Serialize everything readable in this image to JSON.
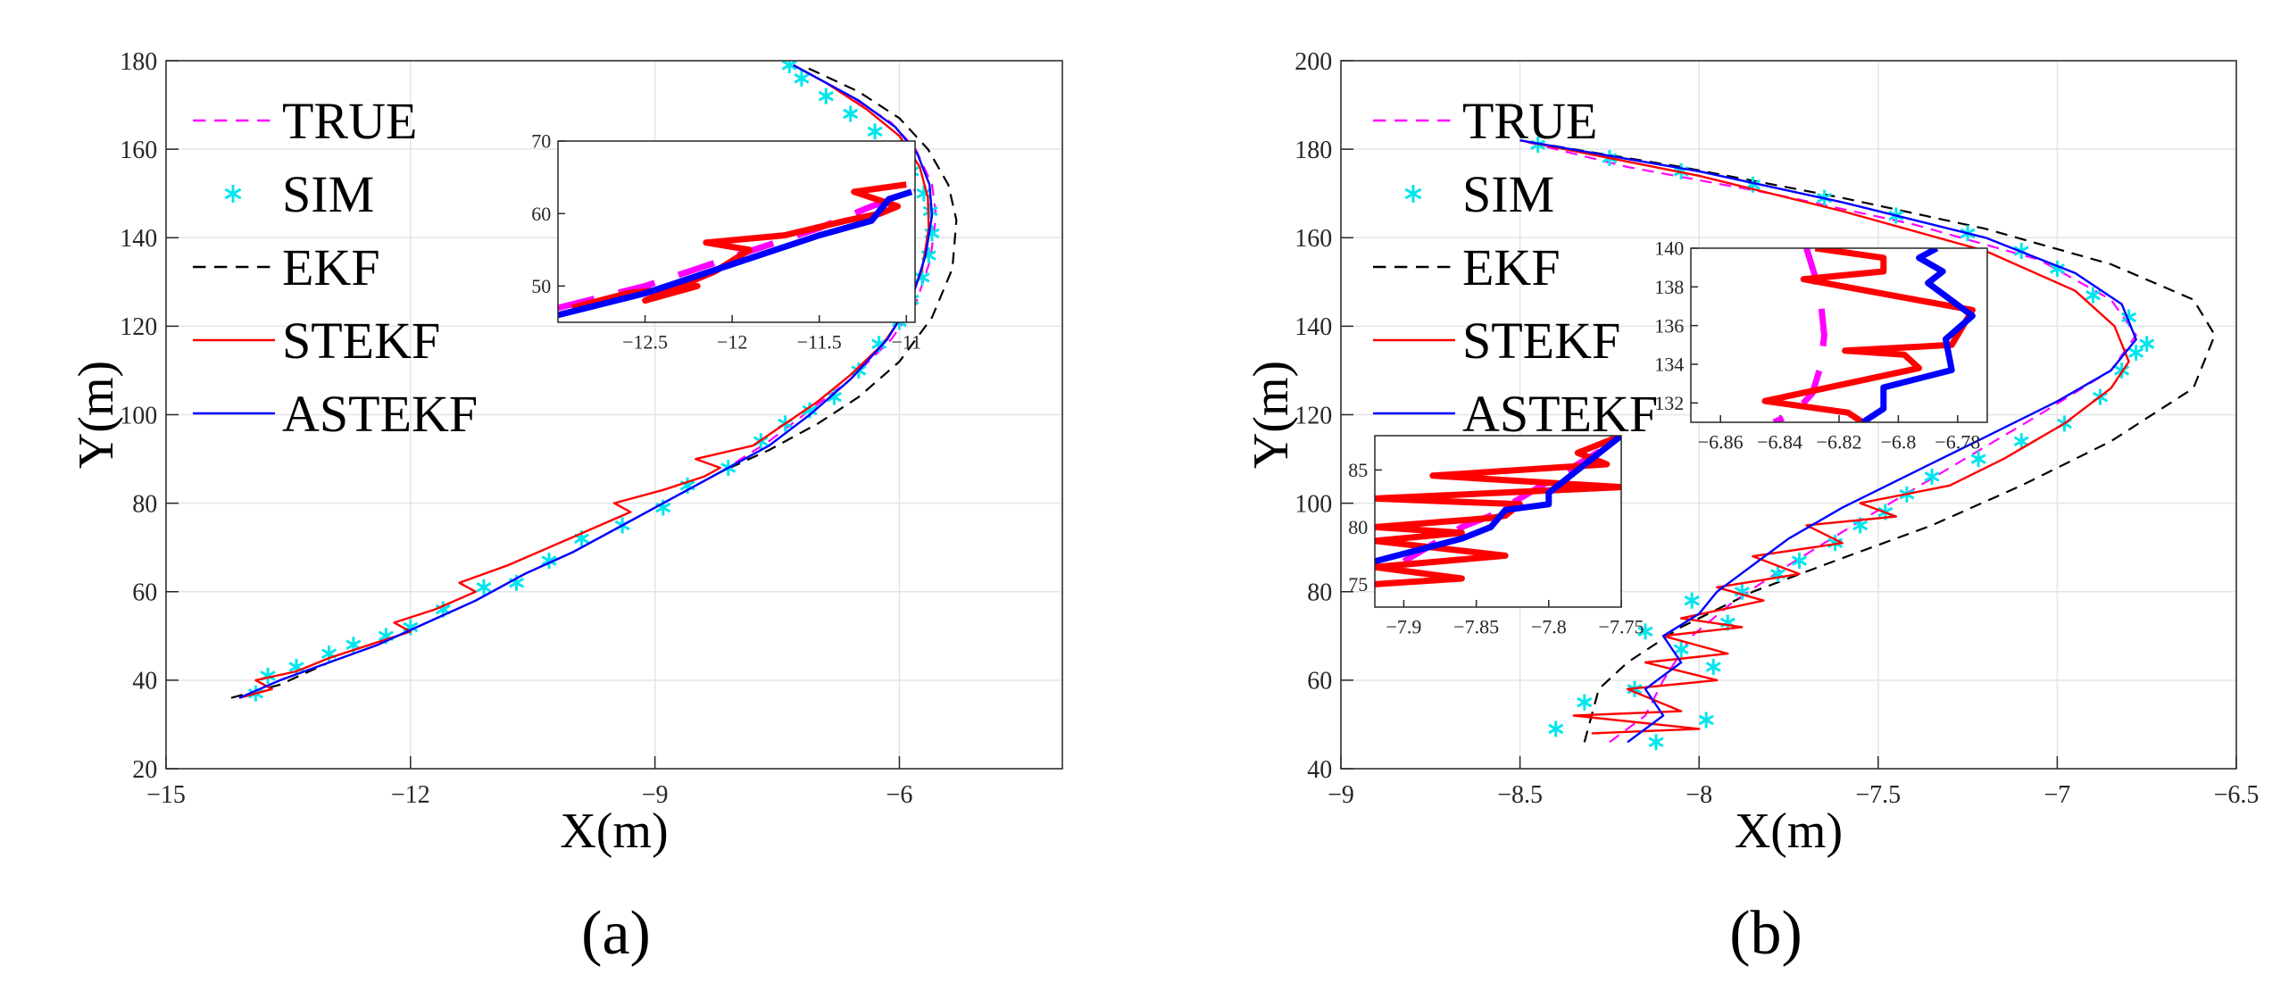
{
  "figure": {
    "panels": [
      {
        "label": "(a)"
      },
      {
        "label": "(b)"
      }
    ]
  },
  "chart_data": [
    {
      "panel": "(a)",
      "type": "line",
      "xlabel": "X(m)",
      "ylabel": "Y(m)",
      "xlim": [
        -15,
        -4
      ],
      "ylim": [
        20,
        180
      ],
      "xticks": [
        -15,
        -12,
        -9,
        -6
      ],
      "yticks": [
        20,
        40,
        60,
        80,
        100,
        120,
        140,
        160,
        180
      ],
      "grid": true,
      "legend": {
        "position": "top-left",
        "entries": [
          "TRUE",
          "SIM",
          "EKF",
          "STEKF",
          "ASTEKF"
        ]
      },
      "series": [
        {
          "name": "TRUE",
          "color": "#ff00ff",
          "style": "dashed",
          "x": [
            -14.1,
            -13.6,
            -13.0,
            -12.4,
            -11.8,
            -11.2,
            -10.6,
            -10.0,
            -9.4,
            -8.8,
            -8.2,
            -7.6,
            -7.1,
            -6.6,
            -6.1,
            -5.8,
            -5.62,
            -5.55,
            -5.6,
            -5.8,
            -6.1,
            -6.6,
            -7.3
          ],
          "y": [
            36,
            40,
            44,
            48,
            53,
            58,
            64,
            69,
            75,
            81,
            87,
            94,
            101,
            108,
            117,
            125,
            135,
            145,
            152,
            160,
            166,
            172,
            179
          ]
        },
        {
          "name": "SIM",
          "color": "#00e5ee",
          "style": "markers",
          "x": [
            -13.9,
            -13.75,
            -13.4,
            -13.0,
            -12.7,
            -12.3,
            -12.0,
            -11.6,
            -11.1,
            -10.7,
            -10.3,
            -9.9,
            -9.4,
            -8.9,
            -8.6,
            -8.1,
            -7.7,
            -7.4,
            -7.1,
            -6.8,
            -6.5,
            -6.25,
            -6.0,
            -5.85,
            -5.72,
            -5.64,
            -5.6,
            -5.62,
            -5.7,
            -5.85,
            -6.05,
            -6.3,
            -6.6,
            -6.9,
            -7.2,
            -7.35
          ],
          "y": [
            37,
            41,
            43,
            46,
            48,
            50,
            52,
            56,
            61,
            62,
            67,
            72,
            75,
            79,
            84,
            88,
            94,
            98,
            101,
            104,
            110,
            116,
            121,
            126,
            131,
            136,
            141,
            146,
            150,
            155,
            160,
            164,
            168,
            172,
            176,
            179
          ]
        },
        {
          "name": "EKF",
          "color": "#000000",
          "style": "dashed",
          "x": [
            -14.2,
            -13.6,
            -13.0,
            -12.4,
            -11.8,
            -11.2,
            -10.6,
            -10.0,
            -9.4,
            -8.8,
            -8.2,
            -7.6,
            -7.0,
            -6.5,
            -6.0,
            -5.6,
            -5.35,
            -5.3,
            -5.4,
            -5.65,
            -6.0,
            -6.5,
            -7.2
          ],
          "y": [
            36,
            39,
            44,
            48,
            53,
            58,
            64,
            69,
            75,
            81,
            87,
            92,
            98,
            104,
            112,
            122,
            133,
            144,
            152,
            160,
            167,
            173,
            179
          ]
        },
        {
          "name": "STEKF",
          "color": "#ff0000",
          "style": "solid",
          "x": [
            -14.1,
            -13.7,
            -13.9,
            -13.4,
            -13.0,
            -12.5,
            -12.0,
            -12.2,
            -11.7,
            -11.2,
            -11.4,
            -10.8,
            -10.3,
            -9.8,
            -9.3,
            -9.5,
            -8.9,
            -8.4,
            -8.2,
            -8.5,
            -7.8,
            -7.4,
            -7.0,
            -6.6,
            -6.2,
            -5.9,
            -5.72,
            -5.64,
            -5.65,
            -5.75,
            -6.0,
            -6.4,
            -6.9,
            -7.3
          ],
          "y": [
            36,
            38,
            40,
            42,
            45,
            48,
            51,
            53,
            56,
            60,
            62,
            66,
            70,
            74,
            78,
            80,
            83,
            86,
            88,
            90,
            93,
            98,
            103,
            109,
            116,
            124,
            133,
            142,
            149,
            156,
            163,
            169,
            175,
            179
          ]
        },
        {
          "name": "ASTEKF",
          "color": "#0000ff",
          "style": "solid",
          "x": [
            -14.1,
            -13.6,
            -13.0,
            -12.4,
            -11.8,
            -11.2,
            -10.6,
            -10.0,
            -9.4,
            -8.8,
            -8.2,
            -7.6,
            -7.1,
            -6.6,
            -6.15,
            -5.85,
            -5.68,
            -5.6,
            -5.63,
            -5.78,
            -6.05,
            -6.5,
            -7.0,
            -7.3
          ],
          "y": [
            36,
            40,
            44,
            48,
            53,
            58,
            64,
            69,
            75,
            81,
            87,
            93,
            100,
            108,
            117,
            126,
            136,
            145,
            152,
            159,
            165,
            171,
            176,
            179
          ]
        }
      ],
      "insets": [
        {
          "position": "top-center",
          "xlim": [
            -13.0,
            -10.95
          ],
          "ylim": [
            45,
            70
          ],
          "xticks": [
            -12.5,
            -12,
            -11.5,
            -11
          ],
          "yticks": [
            50,
            60,
            70
          ],
          "series": [
            {
              "name": "TRUE",
              "x": [
                -13.0,
                -12.5,
                -12.0,
                -11.5,
                -11.2,
                -10.95
              ],
              "y": [
                47,
                50,
                54,
                58,
                61,
                63
              ]
            },
            {
              "name": "STEKF",
              "x": [
                -12.92,
                -12.6,
                -12.2,
                -12.5,
                -12.1,
                -11.9,
                -12.15,
                -11.7,
                -11.35,
                -11.15,
                -11.05,
                -11.3,
                -11.0
              ],
              "y": [
                47,
                49,
                50,
                48,
                52,
                55,
                56,
                57,
                59,
                60,
                61,
                63,
                64
              ]
            },
            {
              "name": "ASTEKF",
              "x": [
                -13.0,
                -12.5,
                -12.0,
                -11.5,
                -11.2,
                -11.1,
                -10.97
              ],
              "y": [
                46,
                49,
                53,
                57,
                59,
                62,
                63
              ]
            }
          ]
        }
      ]
    },
    {
      "panel": "(b)",
      "type": "line",
      "xlabel": "X(m)",
      "ylabel": "Y(m)",
      "xlim": [
        -9,
        -6.5
      ],
      "ylim": [
        40,
        200
      ],
      "xticks": [
        -9,
        -8.5,
        -8,
        -7.5,
        -7,
        -6.5
      ],
      "yticks": [
        40,
        60,
        80,
        100,
        120,
        140,
        160,
        180,
        200
      ],
      "grid": true,
      "legend": {
        "position": "top-left",
        "entries": [
          "TRUE",
          "SIM",
          "EKF",
          "STEKF",
          "ASTEKF"
        ]
      },
      "series": [
        {
          "name": "TRUE",
          "color": "#ff00ff",
          "style": "dashed",
          "x": [
            -8.25,
            -8.15,
            -8.1,
            -8.02,
            -7.9,
            -7.75,
            -7.55,
            -7.3,
            -7.05,
            -6.85,
            -6.78,
            -6.85,
            -7.05,
            -7.4,
            -7.8,
            -8.2,
            -8.5
          ],
          "y": [
            46,
            52,
            60,
            70,
            78,
            86,
            96,
            108,
            120,
            130,
            138,
            146,
            155,
            163,
            170,
            176,
            182
          ]
        },
        {
          "name": "SIM",
          "color": "#00e5ee",
          "style": "markers",
          "x": [
            -8.4,
            -8.12,
            -8.32,
            -7.98,
            -8.18,
            -7.96,
            -8.05,
            -8.15,
            -7.92,
            -8.02,
            -7.88,
            -7.78,
            -7.72,
            -7.62,
            -7.55,
            -7.48,
            -7.42,
            -7.35,
            -7.22,
            -7.1,
            -6.98,
            -6.88,
            -6.82,
            -6.78,
            -6.75,
            -6.8,
            -6.9,
            -7.0,
            -7.1,
            -7.25,
            -7.45,
            -7.65,
            -7.85,
            -8.05,
            -8.25,
            -8.45
          ],
          "y": [
            49,
            46,
            55,
            51,
            58,
            63,
            67,
            71,
            73,
            78,
            80,
            84,
            87,
            91,
            95,
            98,
            102,
            106,
            110,
            114,
            118,
            124,
            130,
            134,
            136,
            142,
            147,
            153,
            157,
            161,
            165,
            169,
            172,
            175,
            178,
            181
          ]
        },
        {
          "name": "EKF",
          "color": "#000000",
          "style": "dashed",
          "x": [
            -8.32,
            -8.3,
            -8.28,
            -8.2,
            -8.05,
            -7.85,
            -7.62,
            -7.35,
            -7.1,
            -6.85,
            -6.62,
            -6.56,
            -6.62,
            -6.85,
            -7.2,
            -7.6,
            -8.05,
            -8.5
          ],
          "y": [
            46,
            52,
            58,
            64,
            72,
            80,
            87,
            95,
            104,
            114,
            126,
            138,
            146,
            154,
            162,
            169,
            176,
            182
          ]
        },
        {
          "name": "STEKF",
          "color": "#ff0000",
          "style": "solid",
          "x": [
            -8.3,
            -8.0,
            -8.35,
            -8.05,
            -8.2,
            -7.95,
            -8.15,
            -7.92,
            -8.1,
            -7.88,
            -8.05,
            -7.82,
            -7.95,
            -7.72,
            -7.85,
            -7.6,
            -7.7,
            -7.45,
            -7.55,
            -7.3,
            -7.15,
            -6.98,
            -6.85,
            -6.8,
            -6.84,
            -6.95,
            -7.2,
            -7.6,
            -8.0,
            -8.5
          ],
          "y": [
            48,
            49,
            52,
            53,
            58,
            60,
            64,
            66,
            70,
            72,
            74,
            78,
            81,
            84,
            88,
            91,
            95,
            97,
            100,
            104,
            110,
            118,
            126,
            132,
            140,
            148,
            157,
            166,
            174,
            182
          ]
        },
        {
          "name": "ASTEKF",
          "color": "#0000ff",
          "style": "solid",
          "x": [
            -8.2,
            -8.1,
            -8.15,
            -8.05,
            -8.1,
            -8.0,
            -7.95,
            -7.85,
            -7.75,
            -7.6,
            -7.4,
            -7.2,
            -7.0,
            -6.85,
            -6.78,
            -6.82,
            -6.95,
            -7.2,
            -7.6,
            -8.0,
            -8.5
          ],
          "y": [
            46,
            52,
            58,
            64,
            70,
            75,
            80,
            86,
            92,
            99,
            107,
            115,
            123,
            130,
            137,
            145,
            152,
            160,
            168,
            175,
            182
          ]
        }
      ],
      "insets": [
        {
          "position": "center-right",
          "xlim": [
            -6.87,
            -6.77
          ],
          "ylim": [
            131,
            140
          ],
          "xticks": [
            -6.86,
            -6.84,
            -6.82,
            -6.8,
            -6.78
          ],
          "yticks": [
            132,
            134,
            136,
            138,
            140
          ],
          "series": [
            {
              "name": "TRUE",
              "x": [
                -6.831,
                -6.828,
                -6.826,
                -6.825,
                -6.826,
                -6.829,
                -6.835,
                -6.842
              ],
              "y": [
                140,
                138.5,
                137,
                135.5,
                134,
                132.5,
                131.5,
                131
              ]
            },
            {
              "name": "STEKF",
              "x": [
                -6.828,
                -6.805,
                -6.805,
                -6.832,
                -6.775,
                -6.782,
                -6.818,
                -6.798,
                -6.793,
                -6.845,
                -6.817,
                -6.812
              ],
              "y": [
                140,
                139.5,
                138.8,
                138.4,
                136.8,
                135,
                134.7,
                134.5,
                133.8,
                132.1,
                131.5,
                131
              ]
            },
            {
              "name": "ASTEKF",
              "x": [
                -6.787,
                -6.793,
                -6.785,
                -6.79,
                -6.775,
                -6.784,
                -6.782,
                -6.805,
                -6.805,
                -6.812
              ],
              "y": [
                140,
                139.5,
                138.8,
                138.2,
                136.5,
                135.3,
                133.7,
                132.8,
                131.7,
                131
              ]
            }
          ]
        },
        {
          "position": "center-left",
          "xlim": [
            -7.92,
            -7.75
          ],
          "ylim": [
            73,
            88
          ],
          "xticks": [
            -7.9,
            -7.85,
            -7.8,
            -7.75
          ],
          "yticks": [
            75,
            80,
            85
          ],
          "series": [
            {
              "name": "TRUE",
              "x": [
                -7.9,
                -7.88,
                -7.86,
                -7.84,
                -7.82,
                -7.8,
                -7.78,
                -7.76
              ],
              "y": [
                77,
                78.5,
                80,
                81,
                82.5,
                84,
                85.5,
                87
              ]
            },
            {
              "name": "STEKF",
              "x": [
                -7.92,
                -7.86,
                -7.92,
                -7.83,
                -7.92,
                -7.86,
                -7.92,
                -7.84,
                -7.83,
                -7.82,
                -7.92,
                -7.75,
                -7.88,
                -7.76,
                -7.78,
                -7.75
              ],
              "y": [
                75,
                75.5,
                76.5,
                77.5,
                78.8,
                79.5,
                80,
                80.8,
                81,
                82,
                82.5,
                83.5,
                84.5,
                85.5,
                86.5,
                88
              ]
            },
            {
              "name": "ASTEKF",
              "x": [
                -7.92,
                -7.89,
                -7.86,
                -7.84,
                -7.83,
                -7.8,
                -7.8,
                -7.79,
                -7.78,
                -7.77,
                -7.76,
                -7.75
              ],
              "y": [
                77,
                78,
                79,
                80,
                81.5,
                82,
                83,
                84,
                85,
                86,
                87,
                88
              ]
            }
          ]
        }
      ]
    }
  ]
}
